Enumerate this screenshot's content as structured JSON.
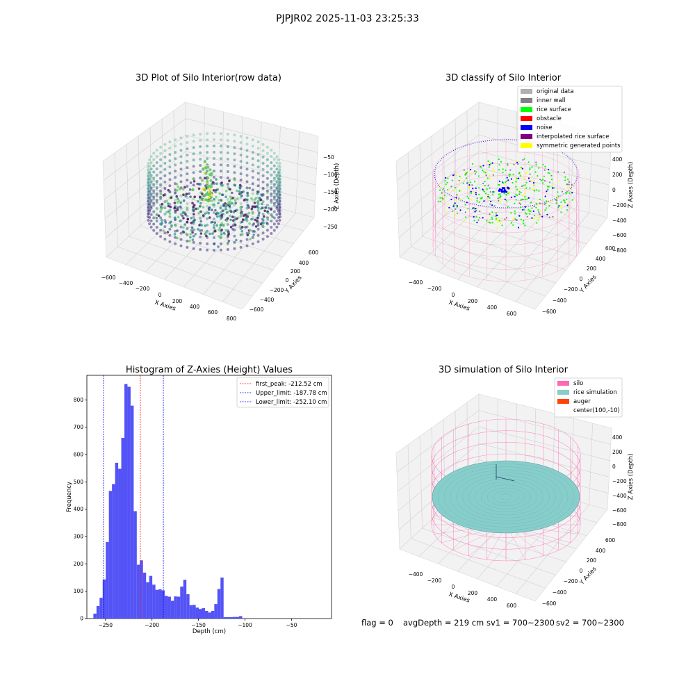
{
  "suptitle": "PJPJR02 2025-11-03 23:25:33",
  "colors": {
    "silo": "#ff69b4",
    "rice_surface": "#00ff00",
    "noise": "#0000ff",
    "original_data": "#b0b0b0",
    "inner_wall": "#808080",
    "obstacle": "#ff0000",
    "interpolated": "#800080",
    "symmetric": "#ffff00",
    "rice_simulation": "#87cecb",
    "auger": "#ff4500",
    "hist_bar": "#4a4af5",
    "peak_line": "#ff0000",
    "limit_line": "#0000ff"
  },
  "raw_plot": {
    "title": "3D Plot of Silo Interior(row data)",
    "xlabel": "X Axies",
    "ylabel": "Y Axies",
    "zlabel": "Z Axies (Depth)",
    "xticks": [
      "−600",
      "−400",
      "−200",
      "0",
      "200",
      "400",
      "600",
      "800"
    ],
    "yticks": [
      "600",
      "400",
      "200",
      "0",
      "−200",
      "−400",
      "−600"
    ],
    "zticks": [
      "−50",
      "−100",
      "−150",
      "−200",
      "−250"
    ],
    "colormap": "viridis"
  },
  "classify_plot": {
    "title": "3D classify of Silo Interior",
    "xlabel": "X Axies",
    "ylabel": "Y Axies",
    "zlabel": "Z Axies (Depth)",
    "xticks": [
      "−400",
      "−200",
      "0",
      "200",
      "400",
      "600"
    ],
    "yticks": [
      "600",
      "400",
      "200",
      "0",
      "−200",
      "−400",
      "−600"
    ],
    "zticks": [
      "400",
      "200",
      "0",
      "−200",
      "−400",
      "−600",
      "−800"
    ],
    "legend": [
      {
        "label": "original data",
        "color": "#b0b0b0"
      },
      {
        "label": "inner wall",
        "color": "#808080"
      },
      {
        "label": "rice surface",
        "color": "#00ff00"
      },
      {
        "label": "obstacle",
        "color": "#ff0000"
      },
      {
        "label": "noise",
        "color": "#0000ff"
      },
      {
        "label": "interpolated rice surface",
        "color": "#800080"
      },
      {
        "label": "symmetric generated points",
        "color": "#ffff00"
      }
    ]
  },
  "sim_plot": {
    "title": "3D simulation of Silo Interior",
    "xlabel": "X Axies",
    "ylabel": "Y Axies",
    "zlabel": "Z Axies (Depth)",
    "xticks": [
      "−400",
      "−200",
      "0",
      "200",
      "400",
      "600"
    ],
    "yticks": [
      "600",
      "400",
      "200",
      "0",
      "−200",
      "−400",
      "−600"
    ],
    "zticks": [
      "400",
      "200",
      "0",
      "−200",
      "−400",
      "−600",
      "−800"
    ],
    "legend": [
      {
        "label": "silo",
        "color": "#ff69b4"
      },
      {
        "label": "rice simulation",
        "color": "#87cecb"
      },
      {
        "label": "auger",
        "color": "#ff4500"
      },
      {
        "label": "center(100,-10)",
        "color": ""
      }
    ]
  },
  "footer": {
    "flag": "flag = 0",
    "avg_depth": "avgDepth = 219 cm",
    "sv1": "sv1 = 700~2300",
    "sv2": "sv2 = 700~2300"
  },
  "chart_data": {
    "type": "bar",
    "title": "Histogram of Z-Axies (Height) Values",
    "xlabel": "Depth (cm)",
    "ylabel": "Frequency",
    "xlim": [
      -270,
      -7
    ],
    "ylim": [
      0,
      890
    ],
    "bin_start": -263,
    "bin_width": 3.333,
    "values": [
      18,
      46,
      76,
      143,
      280,
      467,
      492,
      570,
      548,
      661,
      858,
      848,
      779,
      393,
      197,
      213,
      168,
      133,
      156,
      124,
      105,
      107,
      103,
      83,
      80,
      65,
      81,
      80,
      117,
      142,
      89,
      49,
      50,
      40,
      35,
      38,
      28,
      22,
      28,
      53,
      108,
      150,
      5,
      5,
      5,
      6,
      6,
      9
    ],
    "xticks": [
      -250,
      -200,
      -150,
      -100,
      -50
    ],
    "xtick_labels": [
      "−250",
      "−200",
      "−150",
      "−100",
      "−50"
    ],
    "yticks": [
      0,
      100,
      200,
      300,
      400,
      500,
      600,
      700,
      800
    ],
    "ytick_labels": [
      "0",
      "100",
      "200",
      "300",
      "400",
      "500",
      "600",
      "700",
      "800"
    ],
    "vlines": [
      {
        "name": "first_peak",
        "label": "first_peak: -212.52 cm",
        "x": -212.52,
        "color": "#ff0000"
      },
      {
        "name": "upper_limit",
        "label": "Upper_limit: -187.78 cm",
        "x": -187.78,
        "color": "#0000ff"
      },
      {
        "name": "lower_limit",
        "label": "Lower_limit: -252.10 cm",
        "x": -252.1,
        "color": "#0000ff"
      }
    ]
  }
}
